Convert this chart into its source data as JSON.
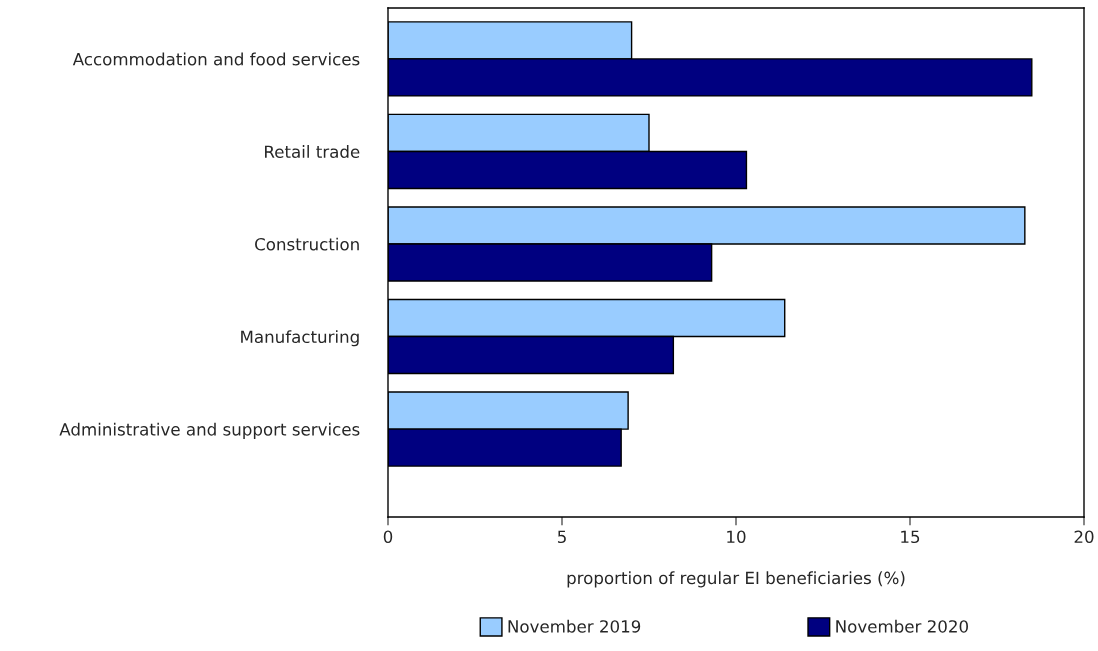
{
  "chart_data": {
    "type": "bar",
    "orientation": "horizontal",
    "xlabel": "proportion of regular EI beneficiaries (%)",
    "categories": [
      "Accommodation and food services",
      "Retail trade",
      "Construction",
      "Manufacturing",
      "Administrative and support services"
    ],
    "series": [
      {
        "name": "November 2019",
        "color": "#99ccff",
        "values": [
          7.0,
          7.5,
          18.3,
          11.4,
          6.9
        ]
      },
      {
        "name": "November 2020",
        "color": "#000080",
        "values": [
          18.5,
          10.3,
          9.3,
          8.2,
          6.7
        ]
      }
    ],
    "xlim": [
      0,
      20
    ],
    "xticks": [
      0,
      5,
      10,
      15,
      20
    ],
    "grid": false,
    "legend": "bottom"
  }
}
